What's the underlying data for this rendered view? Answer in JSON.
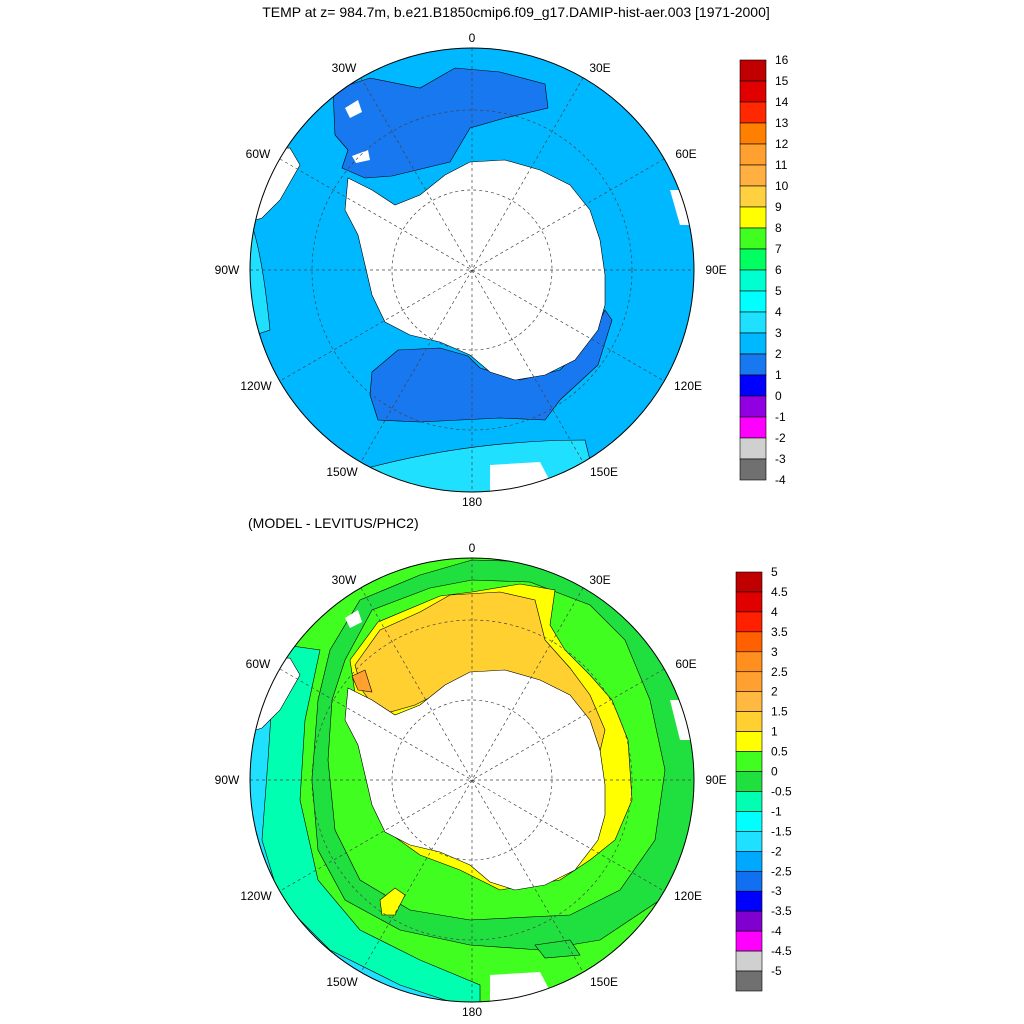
{
  "top_panel": {
    "title": "TEMP at z= 984.7m, b.e21.B1850cmip6.f09_g17.DAMIP-hist-aer.003 [1971-2000]",
    "longitude_labels": [
      "0",
      "30E",
      "60E",
      "90E",
      "120E",
      "150E",
      "180",
      "150W",
      "120W",
      "90W",
      "60W",
      "30W"
    ],
    "colorbar_labels": [
      "16",
      "15",
      "14",
      "13",
      "12",
      "11",
      "10",
      "9",
      "8",
      "7",
      "6",
      "5",
      "4",
      "3",
      "2",
      "1",
      "0",
      "-1",
      "-2",
      "-3",
      "-4"
    ],
    "colorbar_colors": [
      "#c00000",
      "#e00000",
      "#ff2800",
      "#ff8000",
      "#ffa030",
      "#ffb040",
      "#ffd040",
      "#ffff00",
      "#40ff20",
      "#00ff60",
      "#00ffd0",
      "#00ffff",
      "#20e0ff",
      "#00b8ff",
      "#1878f0",
      "#0000ff",
      "#9000e0",
      "#ff00ff",
      "#d0d0d0",
      "#707070"
    ]
  },
  "bottom_panel": {
    "title": "(MODEL - LEVITUS/PHC2)",
    "longitude_labels": [
      "0",
      "30E",
      "60E",
      "90E",
      "120E",
      "150E",
      "180",
      "150W",
      "120W",
      "90W",
      "60W",
      "30W"
    ],
    "colorbar_labels": [
      "5",
      "4.5",
      "4",
      "3.5",
      "3",
      "2.5",
      "2",
      "1.5",
      "1",
      "0.5",
      "0",
      "-0.5",
      "-1",
      "-1.5",
      "-2",
      "-2.5",
      "-3",
      "-3.5",
      "-4",
      "-4.5",
      "-5"
    ],
    "colorbar_colors": [
      "#c00000",
      "#e00000",
      "#ff2000",
      "#ff6000",
      "#ff9020",
      "#ffa030",
      "#ffb840",
      "#ffd030",
      "#ffff00",
      "#40ff20",
      "#20e040",
      "#00ffb0",
      "#00ffff",
      "#20e0ff",
      "#00a8ff",
      "#1070f0",
      "#0000ff",
      "#8000d0",
      "#ff00ff",
      "#d0d0d0",
      "#707070"
    ]
  }
}
